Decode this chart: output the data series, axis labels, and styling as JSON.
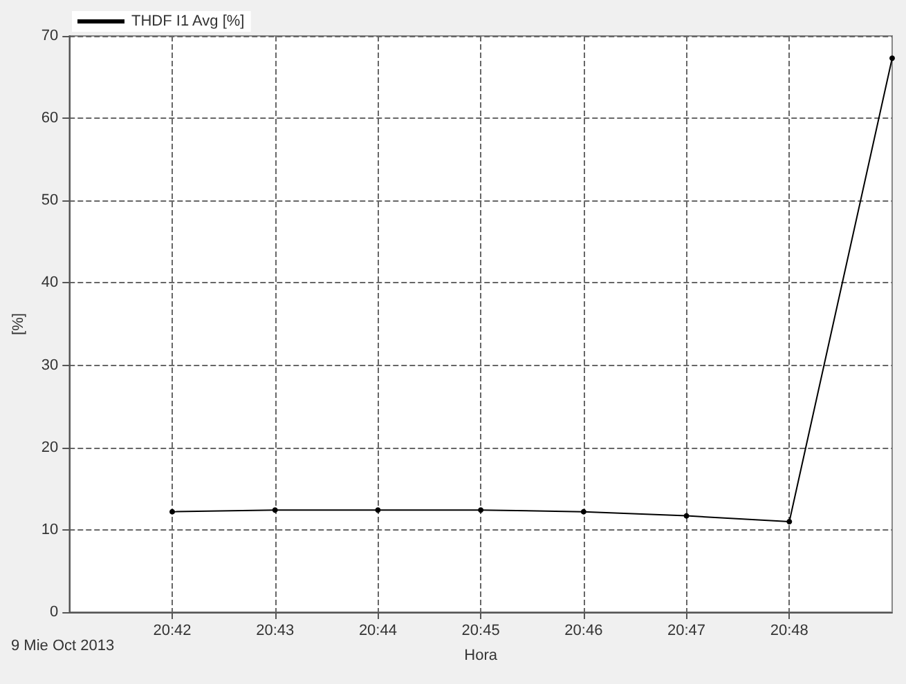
{
  "chart_data": {
    "type": "line",
    "xlabel": "Hora",
    "ylabel": "[%]",
    "annotations": [
      "9 Mie Oct 2013"
    ],
    "x": [
      20.7,
      20.716667,
      20.733333,
      20.75,
      20.766667,
      20.783333,
      20.8,
      20.816667
    ],
    "series": [
      {
        "name": "THDF I1 Avg [%]",
        "color": "#000000",
        "values": [
          12.2,
          12.4,
          12.4,
          12.4,
          12.2,
          11.7,
          11.0,
          67.3
        ]
      }
    ],
    "xlim": [
      20.683333,
      20.816667
    ],
    "xticks": [
      {
        "value": 20.7,
        "label": "20:42"
      },
      {
        "value": 20.716667,
        "label": "20:43"
      },
      {
        "value": 20.733333,
        "label": "20:44"
      },
      {
        "value": 20.75,
        "label": "20:45"
      },
      {
        "value": 20.766667,
        "label": "20:46"
      },
      {
        "value": 20.783333,
        "label": "20:47"
      },
      {
        "value": 20.8,
        "label": "20:48"
      }
    ],
    "ylim": [
      0,
      70
    ],
    "yticks": [
      0,
      10,
      20,
      30,
      40,
      50,
      60,
      70
    ],
    "grid": true,
    "legend": "top left",
    "marker": "circle",
    "line_style": "solid"
  }
}
